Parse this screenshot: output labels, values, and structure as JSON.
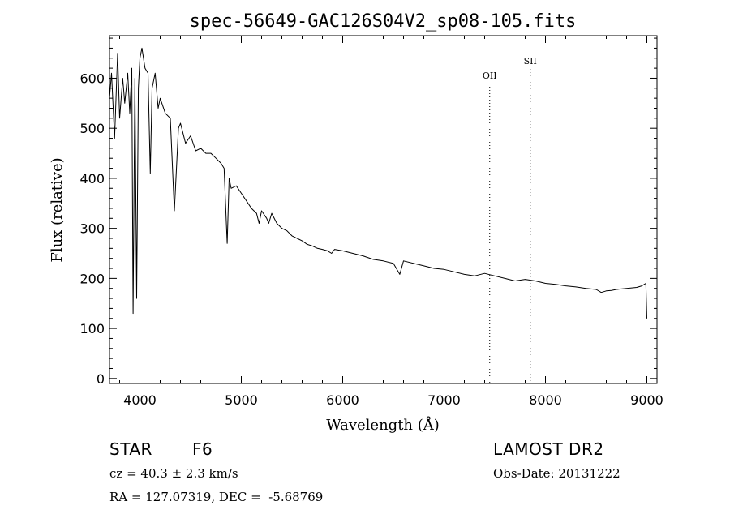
{
  "chart_data": {
    "type": "line",
    "title": "spec-56649-GAC126S04V2_sp08-105.fits",
    "xlabel": "Wavelength (Å)",
    "ylabel": "Flux (relative)",
    "xlim": [
      3700,
      9100
    ],
    "ylim": [
      -10,
      685
    ],
    "xticks": [
      4000,
      5000,
      6000,
      7000,
      8000,
      9000
    ],
    "yticks": [
      0,
      100,
      200,
      300,
      400,
      500,
      600
    ],
    "grid": false,
    "series": [
      {
        "x": [
          3700,
          3720,
          3750,
          3780,
          3800,
          3830,
          3850,
          3880,
          3900,
          3920,
          3933,
          3950,
          3968,
          3985,
          4000,
          4020,
          4050,
          4080,
          4102,
          4120,
          4150,
          4180,
          4200,
          4250,
          4300,
          4340,
          4380,
          4400,
          4450,
          4500,
          4550,
          4600,
          4650,
          4700,
          4750,
          4800,
          4830,
          4861,
          4880,
          4900,
          4950,
          5000,
          5050,
          5100,
          5150,
          5175,
          5200,
          5250,
          5270,
          5300,
          5350,
          5400,
          5450,
          5500,
          5550,
          5600,
          5650,
          5700,
          5750,
          5800,
          5850,
          5890,
          5920,
          6000,
          6100,
          6200,
          6300,
          6400,
          6500,
          6563,
          6600,
          6700,
          6800,
          6900,
          7000,
          7100,
          7200,
          7300,
          7400,
          7500,
          7600,
          7700,
          7800,
          7900,
          8000,
          8100,
          8200,
          8300,
          8400,
          8500,
          8550,
          8600,
          8650,
          8700,
          8800,
          8900,
          8950,
          8990,
          9000
        ],
        "y": [
          560,
          610,
          480,
          650,
          520,
          600,
          550,
          610,
          530,
          620,
          130,
          600,
          160,
          580,
          640,
          660,
          620,
          610,
          410,
          580,
          610,
          540,
          560,
          530,
          520,
          335,
          500,
          510,
          470,
          485,
          455,
          460,
          450,
          450,
          440,
          430,
          420,
          270,
          400,
          380,
          385,
          370,
          355,
          340,
          330,
          310,
          335,
          320,
          310,
          330,
          310,
          300,
          295,
          285,
          280,
          275,
          268,
          265,
          260,
          258,
          255,
          250,
          258,
          255,
          250,
          245,
          238,
          235,
          230,
          208,
          235,
          230,
          225,
          220,
          218,
          213,
          208,
          205,
          210,
          205,
          200,
          195,
          198,
          195,
          190,
          188,
          185,
          183,
          180,
          178,
          172,
          175,
          176,
          178,
          180,
          182,
          185,
          190,
          120
        ]
      }
    ],
    "annotations": [
      {
        "label": "OII",
        "x": 7450
      },
      {
        "label": "SII",
        "x": 7850
      }
    ]
  },
  "footer": {
    "object_type": "STAR",
    "subclass": "F6",
    "survey": "LAMOST DR2",
    "cz": "cz = 40.3 ± 2.3 km/s",
    "obs_date": "Obs-Date: 20131222",
    "coords": "RA = 127.07319, DEC =  -5.68769"
  }
}
